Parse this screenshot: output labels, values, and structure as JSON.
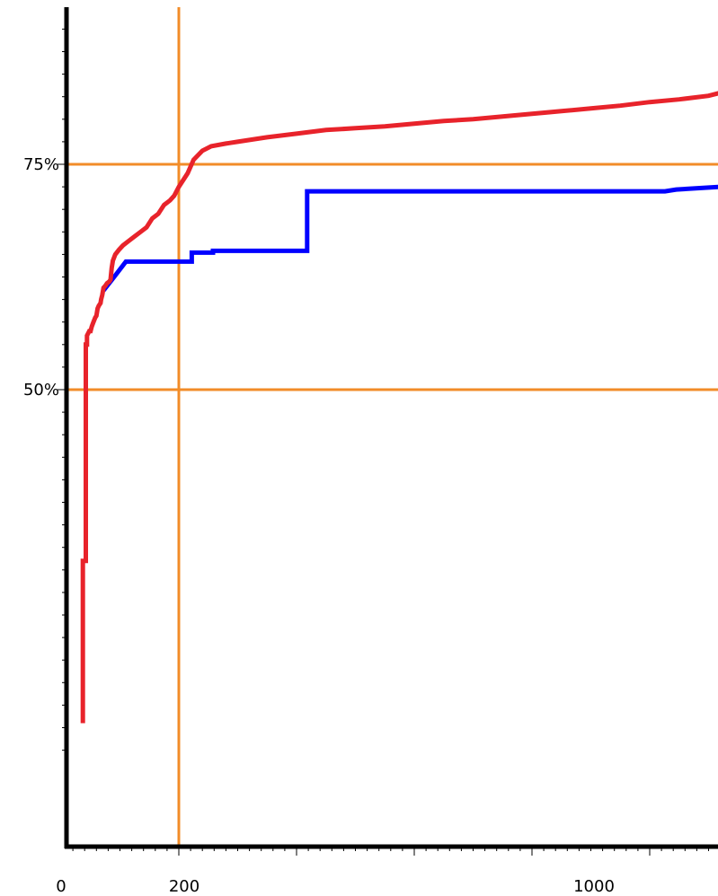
{
  "chart_data": {
    "type": "line",
    "title": "",
    "xlabel": "",
    "ylabel": "",
    "xlim": [
      0,
      1240
    ],
    "ylim": [
      8,
      100
    ],
    "x_tick_labels": [
      {
        "value": 0,
        "label": "0"
      },
      {
        "value": 200,
        "label": "200"
      },
      {
        "value": 1000,
        "label": "1000"
      }
    ],
    "y_tick_labels": [
      {
        "value": 50,
        "label": "50%"
      },
      {
        "value": 75,
        "label": "75%"
      }
    ],
    "reference_lines": [
      {
        "axis": "y",
        "value": 75,
        "color": "#F28C28"
      },
      {
        "axis": "y",
        "value": 50,
        "color": "#F28C28"
      },
      {
        "axis": "x",
        "value": 200,
        "color": "#F28C28"
      }
    ],
    "legend": "none",
    "grid": false,
    "series": [
      {
        "color": "#0000FF",
        "width": 5,
        "x": [
          72,
          90,
          110,
          110,
          222,
          222,
          258,
          258,
          418,
          418,
          1026,
          1026,
          1045,
          1120,
          1120,
          1170,
          1175,
          1200,
          1240
        ],
        "y": [
          61,
          62.5,
          64.2,
          64.2,
          64.2,
          65.2,
          65.2,
          65.4,
          65.4,
          72,
          72,
          72,
          72.2,
          72.5,
          72.5,
          73,
          73,
          73.2,
          73.3
        ]
      },
      {
        "color": "#E8232B",
        "width": 5,
        "x": [
          37,
          37,
          42,
          42,
          44,
          44,
          48,
          50,
          52,
          55,
          58,
          60,
          62,
          64,
          67,
          68,
          70,
          72,
          75,
          78,
          82,
          84,
          86,
          88,
          92,
          98,
          105,
          115,
          125,
          135,
          145,
          155,
          165,
          175,
          185,
          192,
          200,
          215,
          225,
          240,
          255,
          280,
          300,
          330,
          350,
          400,
          450,
          500,
          550,
          600,
          650,
          700,
          750,
          800,
          850,
          900,
          950,
          1000,
          1050,
          1100,
          1130,
          1150,
          1200,
          1240
        ],
        "y": [
          13,
          31,
          31,
          55,
          55,
          56,
          56.5,
          56.5,
          57,
          57.5,
          58,
          58.2,
          59,
          59.3,
          59.6,
          60,
          60.5,
          61.3,
          61.5,
          61.8,
          62,
          62.2,
          63.5,
          64.3,
          65,
          65.5,
          66,
          66.5,
          67,
          67.5,
          68,
          69,
          69.5,
          70.5,
          71,
          71.5,
          72.5,
          74,
          75.5,
          76.5,
          77,
          77.3,
          77.5,
          77.8,
          78,
          78.4,
          78.8,
          79,
          79.2,
          79.5,
          79.8,
          80,
          80.3,
          80.6,
          80.9,
          81.2,
          81.5,
          81.9,
          82.2,
          82.6,
          83,
          83.2,
          83.3,
          83.3
        ]
      }
    ]
  }
}
